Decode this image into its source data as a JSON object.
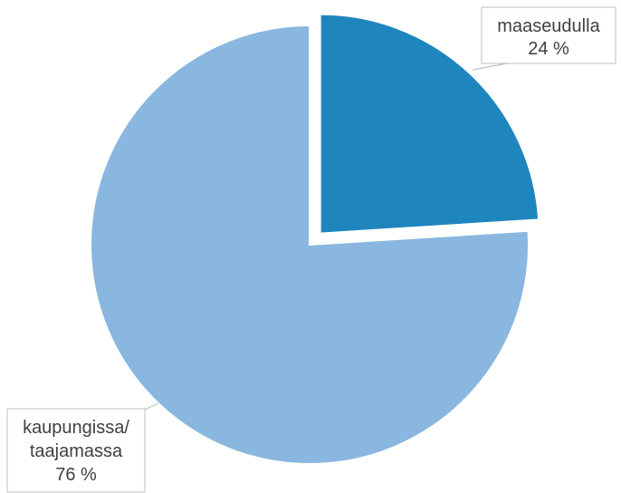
{
  "chart_data": {
    "type": "pie",
    "title": "",
    "slices": [
      {
        "lines": [
          "maaseudulla"
        ],
        "pct_label": "24 %",
        "value": 24,
        "color": "#1f86bd",
        "exploded": true
      },
      {
        "lines": [
          "kaupungissa/",
          "taajamassa"
        ],
        "pct_label": "76 %",
        "value": 76,
        "color": "#89b7df",
        "exploded": false
      }
    ],
    "legend": "none"
  }
}
